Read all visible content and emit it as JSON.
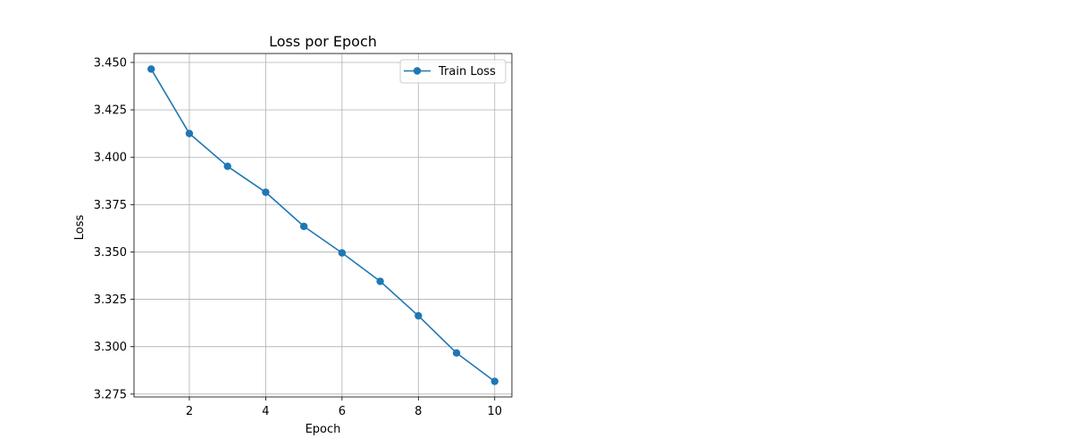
{
  "chart_data": {
    "type": "line",
    "title": "Loss por Epoch",
    "xlabel": "Epoch",
    "ylabel": "Loss",
    "x": [
      1,
      2,
      3,
      4,
      5,
      6,
      7,
      8,
      9,
      10
    ],
    "series": [
      {
        "name": "Train Loss",
        "values": [
          3.4465,
          3.4125,
          3.3952,
          3.3815,
          3.3635,
          3.3495,
          3.3345,
          3.3163,
          3.2967,
          3.2817
        ],
        "color": "#1f77b4",
        "marker": "circle"
      }
    ],
    "xlim": [
      0.55,
      10.45
    ],
    "ylim": [
      3.2735,
      3.4547
    ],
    "xticks": [
      2,
      4,
      6,
      8,
      10
    ],
    "xtick_labels": [
      "2",
      "4",
      "6",
      "8",
      "10"
    ],
    "yticks": [
      3.275,
      3.3,
      3.325,
      3.35,
      3.375,
      3.4,
      3.425,
      3.45
    ],
    "ytick_labels": [
      "3.275",
      "3.300",
      "3.325",
      "3.350",
      "3.375",
      "3.400",
      "3.425",
      "3.450"
    ],
    "grid": true,
    "legend": "top-right"
  }
}
